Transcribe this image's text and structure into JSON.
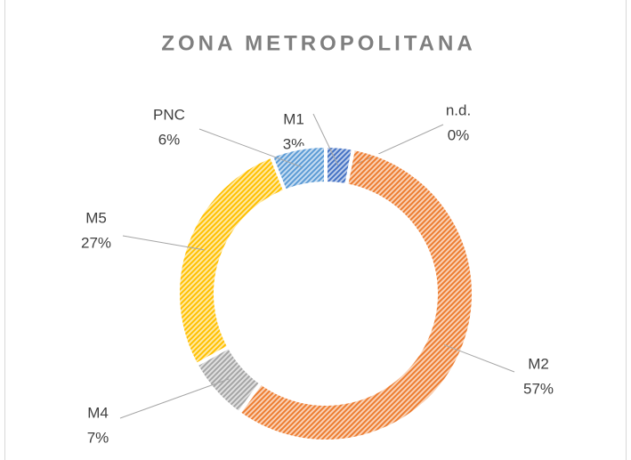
{
  "chart_data": {
    "type": "donut",
    "title": "ZONA METROPOLITANA",
    "categories": [
      "M1",
      "n.d.",
      "M2",
      "M4",
      "M5",
      "PNC"
    ],
    "values": [
      3,
      0,
      57,
      7,
      27,
      6
    ],
    "value_labels": [
      "3%",
      "0%",
      "57%",
      "7%",
      "27%",
      "6%"
    ],
    "colors": [
      "#4472c4",
      "#264478",
      "#ed7d31",
      "#a5a5a5",
      "#ffc000",
      "#5b9bd5"
    ]
  }
}
